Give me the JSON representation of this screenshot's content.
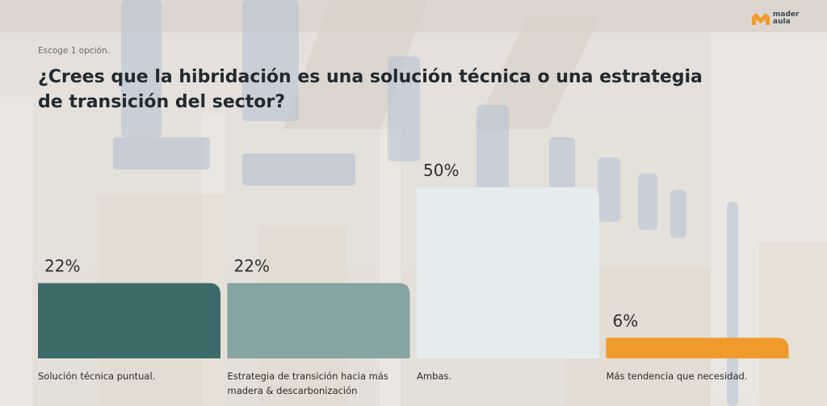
{
  "brand": {
    "logo_line1": "mader",
    "logo_line2": "aula"
  },
  "prompt": "Escoge 1 opción.",
  "question": "¿Crees que la hibridación es una solución técnica o una estrategia de transición del sector?",
  "chart_data": {
    "type": "bar",
    "categories": [
      "Solución técnica puntual.",
      "Estrategia de transición hacia más madera & descarbonización",
      "Ambas.",
      "Más tendencia que necesidad."
    ],
    "values": [
      22,
      22,
      50,
      6
    ],
    "value_labels": [
      "22%",
      "22%",
      "50%",
      "6%"
    ],
    "colors": [
      "#3d6b6a",
      "#85a4a3",
      "#e5eced",
      "#f19a2c"
    ],
    "ylim": [
      0,
      50
    ],
    "grid": false,
    "title": "¿Crees que la hibridación es una solución técnica o una estrategia de transición del sector?",
    "xlabel": "",
    "ylabel": ""
  }
}
